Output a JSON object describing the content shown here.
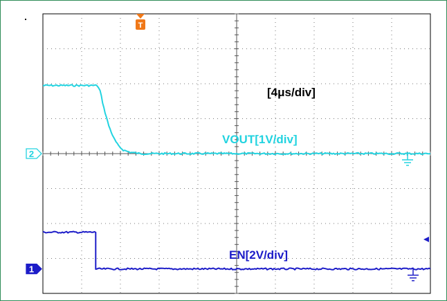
{
  "chart_data": {
    "type": "line",
    "timebase_label": "[4μs/div]",
    "timebase_us_per_div": 4,
    "x_divisions": 10,
    "y_divisions": 8,
    "trigger_marker": "T",
    "series": [
      {
        "name": "VOUT[1V/div]",
        "channel": "2",
        "color": "#22d3e0",
        "volts_per_div": 1,
        "x_us": [
          0,
          5.6,
          5.9,
          6.3,
          6.8,
          7.3,
          7.8,
          8.3,
          9.0,
          10.0,
          40
        ],
        "y_div": [
          1.95,
          1.95,
          1.8,
          1.3,
          0.8,
          0.45,
          0.22,
          0.1,
          0.04,
          0.0,
          0.0
        ]
      },
      {
        "name": "EN[2V/div]",
        "channel": "1",
        "color": "#1c1cc8",
        "volts_per_div": 2,
        "x_us": [
          0,
          5.45,
          5.45,
          40
        ],
        "y_div": [
          1.05,
          1.05,
          0.0,
          0.0
        ]
      }
    ]
  }
}
